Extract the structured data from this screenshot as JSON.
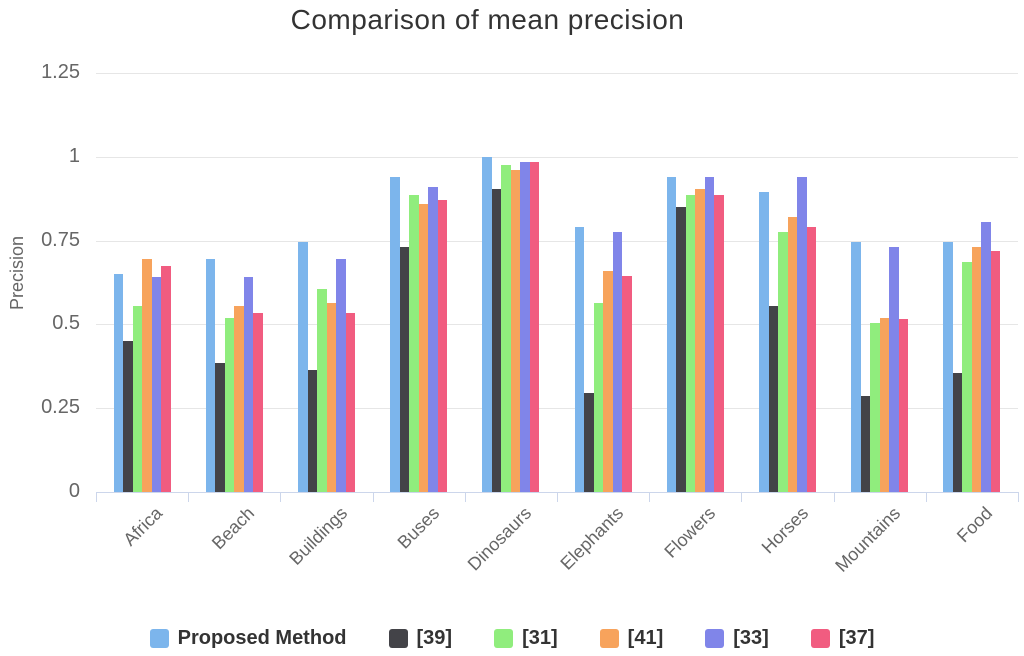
{
  "chart_data": {
    "type": "bar",
    "title": "Comparison of mean precision",
    "xlabel": "",
    "ylabel": "Precision",
    "ylim": [
      0,
      1.25
    ],
    "yticks": [
      0,
      0.25,
      0.5,
      0.75,
      1,
      1.25
    ],
    "ytick_labels": [
      "0",
      "0.25",
      "0.5",
      "0.75",
      "1",
      "1.25"
    ],
    "grid": true,
    "legend_position": "bottom",
    "categories": [
      "Africa",
      "Beach",
      "Buildings",
      "Buses",
      "Dinosaurs",
      "Elephants",
      "Flowers",
      "Horses",
      "Mountains",
      "Food"
    ],
    "series": [
      {
        "name": "Proposed Method",
        "color": "#7cb5ec",
        "values": [
          0.65,
          0.695,
          0.745,
          0.94,
          1.0,
          0.79,
          0.94,
          0.895,
          0.745,
          0.745
        ]
      },
      {
        "name": "[39]",
        "color": "#434348",
        "values": [
          0.45,
          0.385,
          0.365,
          0.73,
          0.905,
          0.295,
          0.85,
          0.555,
          0.285,
          0.355
        ]
      },
      {
        "name": "[31]",
        "color": "#90ed7d",
        "values": [
          0.555,
          0.52,
          0.605,
          0.885,
          0.975,
          0.565,
          0.885,
          0.775,
          0.505,
          0.685
        ]
      },
      {
        "name": "[41]",
        "color": "#f7a35c",
        "values": [
          0.695,
          0.555,
          0.565,
          0.86,
          0.96,
          0.66,
          0.905,
          0.82,
          0.52,
          0.73
        ]
      },
      {
        "name": "[33]",
        "color": "#8085e9",
        "values": [
          0.64,
          0.64,
          0.695,
          0.91,
          0.985,
          0.775,
          0.94,
          0.94,
          0.73,
          0.805
        ]
      },
      {
        "name": "[37]",
        "color": "#f15c80",
        "values": [
          0.675,
          0.535,
          0.535,
          0.87,
          0.985,
          0.645,
          0.885,
          0.79,
          0.515,
          0.72
        ]
      }
    ],
    "colors": {
      "title": "#333333",
      "axis_labels": "#666666",
      "grid": "#e6e6e6",
      "axis_line": "#ccd6eb",
      "background": "#ffffff"
    }
  }
}
